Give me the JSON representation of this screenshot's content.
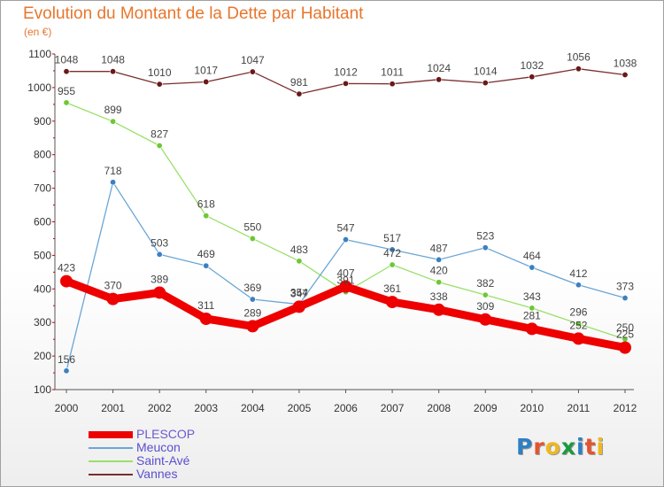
{
  "header": {
    "title": "Evolution du Montant de la Dette par Habitant",
    "subtitle": "(en €)"
  },
  "brand": {
    "name": "Proxiti",
    "letter_colors": [
      "#2e7fc3",
      "#e5542f",
      "#f0b81f",
      "#1a9a3e",
      "#2e7fc3",
      "#e5542f",
      "#f0b81f"
    ]
  },
  "colors": {
    "title": "#e8762c",
    "axis": "#555555",
    "tick_text": "#333333",
    "label_text": "#444444"
  },
  "chart_data": {
    "type": "line",
    "title": "Evolution du Montant de la Dette par Habitant",
    "subtitle": "(en €)",
    "xlabel": "",
    "ylabel": "",
    "x": [
      2000,
      2001,
      2002,
      2003,
      2004,
      2005,
      2006,
      2007,
      2008,
      2009,
      2010,
      2011,
      2012
    ],
    "ylim": [
      100,
      1100
    ],
    "yticks": [
      100,
      200,
      300,
      400,
      500,
      600,
      700,
      800,
      900,
      1000,
      1100
    ],
    "grid": false,
    "legend_position": "bottom-left",
    "series": [
      {
        "name": "PLESCOP",
        "color": "#ee0000",
        "marker_color": "#ee0000",
        "values": [
          423,
          370,
          389,
          311,
          289,
          347,
          407,
          361,
          338,
          309,
          281,
          252,
          225
        ],
        "labels": [
          "423",
          "370",
          "389",
          "311",
          "289",
          "347",
          "407",
          "361",
          "338",
          "309",
          "281",
          "252",
          "225"
        ]
      },
      {
        "name": "Meucon",
        "color": "#6aa6d6",
        "marker_color": "#3c80c0",
        "values": [
          156,
          718,
          503,
          469,
          369,
          354,
          547,
          517,
          487,
          523,
          464,
          412,
          373
        ],
        "labels": [
          "156",
          "718",
          "503",
          "469",
          "369",
          "354",
          "547",
          "517",
          "487",
          "523",
          "464",
          "412",
          "373"
        ]
      },
      {
        "name": "Saint-Avé",
        "color": "#99e06a",
        "marker_color": "#6dc834",
        "values": [
          955,
          899,
          827,
          618,
          550,
          483,
          391,
          472,
          420,
          382,
          343,
          296,
          250
        ],
        "labels": [
          "955",
          "899",
          "827",
          "618",
          "550",
          "483",
          "391",
          "472",
          "420",
          "382",
          "343",
          "296",
          "250"
        ]
      },
      {
        "name": "Vannes",
        "color": "#7a2e2e",
        "marker_color": "#6a1818",
        "values": [
          1048,
          1048,
          1010,
          1017,
          1047,
          981,
          1012,
          1011,
          1024,
          1014,
          1032,
          1056,
          1038
        ],
        "labels": [
          "1048",
          "1048",
          "1010",
          "1017",
          "1047",
          "981",
          "1012",
          "1011",
          "1024",
          "1014",
          "1032",
          "1056",
          "1038"
        ]
      }
    ]
  }
}
